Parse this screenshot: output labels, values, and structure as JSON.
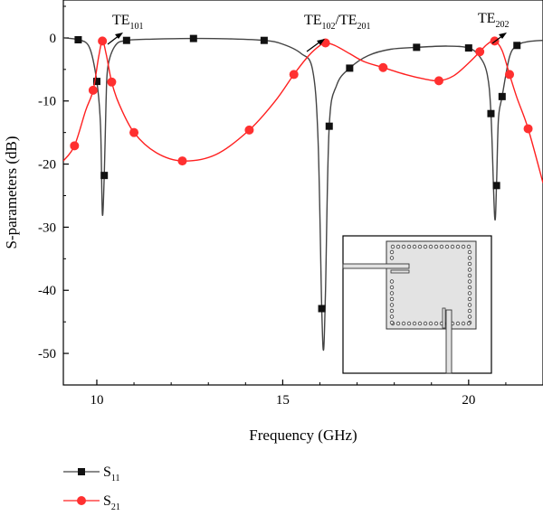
{
  "chart_data": {
    "type": "line",
    "xlabel": "Frequency (GHz)",
    "ylabel": "S-parameters (dB)",
    "xlim": [
      9.1,
      22.0
    ],
    "ylim": [
      -55,
      6
    ],
    "x_ticks": [
      "10",
      "15",
      "20"
    ],
    "y_ticks": [
      "0",
      "-10",
      "-20",
      "-30",
      "-40",
      "-50"
    ],
    "grid": false,
    "legend_placement": "bottom-left, below plot",
    "series": [
      {
        "name": "S",
        "name_sub": "11",
        "color": "#444444",
        "marker": "square",
        "x": [
          9.1,
          9.5,
          9.8,
          10.0,
          10.1,
          10.15,
          10.2,
          10.25,
          10.3,
          10.5,
          10.8,
          11.5,
          12.6,
          13.5,
          14.5,
          15.0,
          15.5,
          15.8,
          15.95,
          16.05,
          16.1,
          16.15,
          16.25,
          16.45,
          16.8,
          17.3,
          17.9,
          18.6,
          19.4,
          20.0,
          20.3,
          20.5,
          20.6,
          20.7,
          20.75,
          20.8,
          20.9,
          21.1,
          21.3,
          21.6,
          22.0
        ],
        "y": [
          0.0,
          -0.3,
          -1.5,
          -6.9,
          -14.0,
          -27.9,
          -21.8,
          -10.0,
          -4.5,
          -1.2,
          -0.4,
          -0.2,
          -0.1,
          -0.15,
          -0.4,
          -1.0,
          -2.5,
          -5.0,
          -16.0,
          -42.9,
          -49.4,
          -40.0,
          -14.0,
          -7.5,
          -4.8,
          -2.8,
          -1.8,
          -1.5,
          -1.3,
          -1.6,
          -3.0,
          -5.8,
          -12.0,
          -28.4,
          -23.4,
          -13.0,
          -9.3,
          -3.0,
          -1.2,
          -0.6,
          -0.4
        ]
      },
      {
        "name": "S",
        "name_sub": "21",
        "color": "#ff2020",
        "marker": "circle",
        "x": [
          9.1,
          9.4,
          9.7,
          9.9,
          10.05,
          10.15,
          10.25,
          10.4,
          10.6,
          11.0,
          11.6,
          12.3,
          13.2,
          14.1,
          14.8,
          15.3,
          15.7,
          16.0,
          16.15,
          16.4,
          16.8,
          17.2,
          17.7,
          18.3,
          18.8,
          19.2,
          19.6,
          20.0,
          20.3,
          20.5,
          20.7,
          20.9,
          21.1,
          21.3,
          21.6,
          22.0
        ],
        "y": [
          -19.5,
          -17.1,
          -11.5,
          -8.3,
          -3.0,
          -0.5,
          -2.5,
          -7.0,
          -10.5,
          -15.0,
          -18.2,
          -19.5,
          -18.5,
          -14.6,
          -10.0,
          -5.8,
          -2.8,
          -1.2,
          -0.8,
          -1.2,
          -2.5,
          -3.8,
          -4.7,
          -5.8,
          -6.5,
          -6.8,
          -6.0,
          -4.0,
          -2.2,
          -1.0,
          -0.5,
          -2.0,
          -5.8,
          -9.5,
          -14.4,
          -23.0
        ]
      }
    ],
    "annotations": [
      {
        "base": "TE",
        "sub": "101"
      },
      {
        "base": "TE",
        "sub": "102",
        "sep": "/",
        "base2": "TE",
        "sub2": "201"
      },
      {
        "base": "TE",
        "sub": "202"
      }
    ]
  }
}
